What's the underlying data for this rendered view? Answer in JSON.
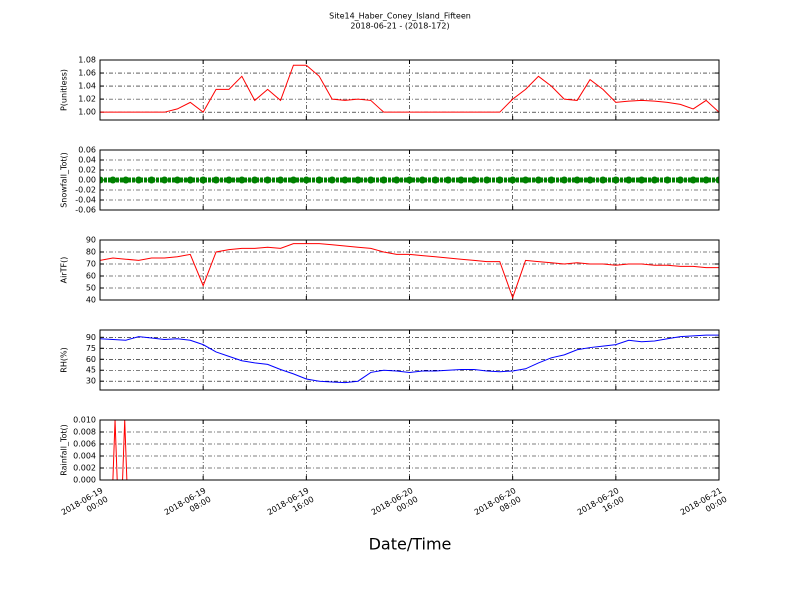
{
  "title": "Site14_Haber_Coney_Island_Fifteen",
  "subtitle": "2018-06-21 - (2018-172)",
  "xlabel": "Date/Time",
  "chart_data": [
    {
      "type": "line",
      "ylabel": "P(unitless)",
      "color": "#ff0000",
      "marker": "none",
      "linestyle": "solid",
      "x": [
        "2018-06-19 00:00",
        "2018-06-19 01:00",
        "2018-06-19 02:00",
        "2018-06-19 03:00",
        "2018-06-19 04:00",
        "2018-06-19 05:00",
        "2018-06-19 06:00",
        "2018-06-19 07:00",
        "2018-06-19 08:00",
        "2018-06-19 09:00",
        "2018-06-19 10:00",
        "2018-06-19 11:00",
        "2018-06-19 12:00",
        "2018-06-19 13:00",
        "2018-06-19 14:00",
        "2018-06-19 15:00",
        "2018-06-19 16:00",
        "2018-06-19 17:00",
        "2018-06-19 18:00",
        "2018-06-19 19:00",
        "2018-06-19 20:00",
        "2018-06-19 21:00",
        "2018-06-19 22:00",
        "2018-06-19 23:00",
        "2018-06-20 00:00",
        "2018-06-20 01:00",
        "2018-06-20 02:00",
        "2018-06-20 03:00",
        "2018-06-20 04:00",
        "2018-06-20 05:00",
        "2018-06-20 06:00",
        "2018-06-20 07:00",
        "2018-06-20 08:00",
        "2018-06-20 09:00",
        "2018-06-20 10:00",
        "2018-06-20 11:00",
        "2018-06-20 12:00",
        "2018-06-20 13:00",
        "2018-06-20 14:00",
        "2018-06-20 15:00",
        "2018-06-20 16:00",
        "2018-06-20 17:00",
        "2018-06-20 18:00",
        "2018-06-20 19:00",
        "2018-06-20 20:00",
        "2018-06-20 21:00",
        "2018-06-20 22:00",
        "2018-06-20 23:00",
        "2018-06-21 00:00"
      ],
      "values": [
        1.0,
        1.0,
        1.0,
        1.0,
        1.0,
        1.0,
        1.005,
        1.015,
        1.0,
        1.035,
        1.035,
        1.055,
        1.018,
        1.035,
        1.018,
        1.072,
        1.072,
        1.055,
        1.02,
        1.018,
        1.02,
        1.018,
        1.0,
        1.0,
        1.0,
        1.0,
        1.0,
        1.0,
        1.0,
        1.0,
        1.0,
        1.0,
        1.02,
        1.035,
        1.055,
        1.04,
        1.02,
        1.018,
        1.05,
        1.035,
        1.015,
        1.017,
        1.018,
        1.017,
        1.015,
        1.012,
        1.005,
        1.018,
        1.0
      ],
      "ylim": [
        0.988,
        1.08
      ],
      "yticks": [
        {
          "value": 1.0,
          "label": "1.00"
        },
        {
          "value": 1.02,
          "label": "1.02"
        },
        {
          "value": 1.04,
          "label": "1.04"
        },
        {
          "value": 1.06,
          "label": "1.06"
        },
        {
          "value": 1.08,
          "label": "1.08"
        }
      ],
      "xlim": [
        "2018-06-19 00:00",
        "2018-06-21 00:00"
      ],
      "xticks": [
        "2018-06-19 00:00",
        "2018-06-19 08:00",
        "2018-06-19 16:00",
        "2018-06-20 00:00",
        "2018-06-20 08:00",
        "2018-06-20 16:00",
        "2018-06-21 00:00"
      ],
      "grid": true
    },
    {
      "type": "line",
      "ylabel": "Snowfall_Tot()",
      "color": "#008000",
      "marker": "o",
      "linestyle": "none",
      "x": [
        "2018-06-19 00:00",
        "2018-06-19 01:00",
        "2018-06-19 02:00",
        "2018-06-19 03:00",
        "2018-06-19 04:00",
        "2018-06-19 05:00",
        "2018-06-19 06:00",
        "2018-06-19 07:00",
        "2018-06-19 08:00",
        "2018-06-19 09:00",
        "2018-06-19 10:00",
        "2018-06-19 11:00",
        "2018-06-19 12:00",
        "2018-06-19 13:00",
        "2018-06-19 14:00",
        "2018-06-19 15:00",
        "2018-06-19 16:00",
        "2018-06-19 17:00",
        "2018-06-19 18:00",
        "2018-06-19 19:00",
        "2018-06-19 20:00",
        "2018-06-19 21:00",
        "2018-06-19 22:00",
        "2018-06-19 23:00",
        "2018-06-20 00:00",
        "2018-06-20 01:00",
        "2018-06-20 02:00",
        "2018-06-20 03:00",
        "2018-06-20 04:00",
        "2018-06-20 05:00",
        "2018-06-20 06:00",
        "2018-06-20 07:00",
        "2018-06-20 08:00",
        "2018-06-20 09:00",
        "2018-06-20 10:00",
        "2018-06-20 11:00",
        "2018-06-20 12:00",
        "2018-06-20 13:00",
        "2018-06-20 14:00",
        "2018-06-20 15:00",
        "2018-06-20 16:00",
        "2018-06-20 17:00",
        "2018-06-20 18:00",
        "2018-06-20 19:00",
        "2018-06-20 20:00",
        "2018-06-20 21:00",
        "2018-06-20 22:00",
        "2018-06-20 23:00",
        "2018-06-21 00:00"
      ],
      "values": [
        0,
        0,
        0,
        0,
        0,
        0,
        0,
        0,
        0,
        0,
        0,
        0,
        0,
        0,
        0,
        0,
        0,
        0,
        0,
        0,
        0,
        0,
        0,
        0,
        0,
        0,
        0,
        0,
        0,
        0,
        0,
        0,
        0,
        0,
        0,
        0,
        0,
        0,
        0,
        0,
        0,
        0,
        0,
        0,
        0,
        0,
        0,
        0,
        0
      ],
      "ylim": [
        -0.06,
        0.06
      ],
      "yticks": [
        {
          "value": -0.06,
          "label": "-0.06"
        },
        {
          "value": -0.04,
          "label": "-0.04"
        },
        {
          "value": -0.02,
          "label": "-0.02"
        },
        {
          "value": 0,
          "label": "0.00"
        },
        {
          "value": 0.02,
          "label": "0.02"
        },
        {
          "value": 0.04,
          "label": "0.04"
        },
        {
          "value": 0.06,
          "label": "0.06"
        }
      ],
      "xlim": [
        "2018-06-19 00:00",
        "2018-06-21 00:00"
      ],
      "xticks": [
        "2018-06-19 00:00",
        "2018-06-19 08:00",
        "2018-06-19 16:00",
        "2018-06-20 00:00",
        "2018-06-20 08:00",
        "2018-06-20 16:00",
        "2018-06-21 00:00"
      ],
      "grid": true
    },
    {
      "type": "line",
      "ylabel": "AirTF()",
      "color": "#ff0000",
      "marker": "none",
      "linestyle": "solid",
      "x": [
        "2018-06-19 00:00",
        "2018-06-19 01:00",
        "2018-06-19 02:00",
        "2018-06-19 03:00",
        "2018-06-19 04:00",
        "2018-06-19 05:00",
        "2018-06-19 06:00",
        "2018-06-19 07:00",
        "2018-06-19 08:00",
        "2018-06-19 09:00",
        "2018-06-19 10:00",
        "2018-06-19 11:00",
        "2018-06-19 12:00",
        "2018-06-19 13:00",
        "2018-06-19 14:00",
        "2018-06-19 15:00",
        "2018-06-19 16:00",
        "2018-06-19 17:00",
        "2018-06-19 18:00",
        "2018-06-19 19:00",
        "2018-06-19 20:00",
        "2018-06-19 21:00",
        "2018-06-19 22:00",
        "2018-06-19 23:00",
        "2018-06-20 00:00",
        "2018-06-20 01:00",
        "2018-06-20 02:00",
        "2018-06-20 03:00",
        "2018-06-20 04:00",
        "2018-06-20 05:00",
        "2018-06-20 06:00",
        "2018-06-20 07:00",
        "2018-06-20 08:00",
        "2018-06-20 09:00",
        "2018-06-20 10:00",
        "2018-06-20 11:00",
        "2018-06-20 12:00",
        "2018-06-20 13:00",
        "2018-06-20 14:00",
        "2018-06-20 15:00",
        "2018-06-20 16:00",
        "2018-06-20 17:00",
        "2018-06-20 18:00",
        "2018-06-20 19:00",
        "2018-06-20 20:00",
        "2018-06-20 21:00",
        "2018-06-20 22:00",
        "2018-06-20 23:00",
        "2018-06-21 00:00"
      ],
      "values": [
        73,
        75,
        74,
        73,
        75,
        75,
        76,
        78,
        52,
        80,
        82,
        83,
        83,
        84,
        83,
        87,
        87,
        87,
        86,
        85,
        84,
        83,
        80,
        78,
        78,
        77,
        76,
        75,
        74,
        73,
        72,
        72,
        42,
        73,
        72,
        71,
        70,
        71,
        70,
        70,
        69,
        70,
        70,
        69,
        69,
        68,
        68,
        67,
        67
      ],
      "ylim": [
        40,
        90
      ],
      "yticks": [
        40,
        50,
        60,
        70,
        80,
        90
      ],
      "xlim": [
        "2018-06-19 00:00",
        "2018-06-21 00:00"
      ],
      "xticks": [
        "2018-06-19 00:00",
        "2018-06-19 08:00",
        "2018-06-19 16:00",
        "2018-06-20 00:00",
        "2018-06-20 08:00",
        "2018-06-20 16:00",
        "2018-06-21 00:00"
      ],
      "grid": true
    },
    {
      "type": "line",
      "ylabel": "RH(%)",
      "color": "#0000ff",
      "marker": "none",
      "linestyle": "solid",
      "x": [
        "2018-06-19 00:00",
        "2018-06-19 01:00",
        "2018-06-19 02:00",
        "2018-06-19 03:00",
        "2018-06-19 04:00",
        "2018-06-19 05:00",
        "2018-06-19 06:00",
        "2018-06-19 07:00",
        "2018-06-19 08:00",
        "2018-06-19 09:00",
        "2018-06-19 10:00",
        "2018-06-19 11:00",
        "2018-06-19 12:00",
        "2018-06-19 13:00",
        "2018-06-19 14:00",
        "2018-06-19 15:00",
        "2018-06-19 16:00",
        "2018-06-19 17:00",
        "2018-06-19 18:00",
        "2018-06-19 19:00",
        "2018-06-19 20:00",
        "2018-06-19 21:00",
        "2018-06-19 22:00",
        "2018-06-19 23:00",
        "2018-06-20 00:00",
        "2018-06-20 01:00",
        "2018-06-20 02:00",
        "2018-06-20 03:00",
        "2018-06-20 04:00",
        "2018-06-20 05:00",
        "2018-06-20 06:00",
        "2018-06-20 07:00",
        "2018-06-20 08:00",
        "2018-06-20 09:00",
        "2018-06-20 10:00",
        "2018-06-20 11:00",
        "2018-06-20 12:00",
        "2018-06-20 13:00",
        "2018-06-20 14:00",
        "2018-06-20 15:00",
        "2018-06-20 16:00",
        "2018-06-20 17:00",
        "2018-06-20 18:00",
        "2018-06-20 19:00",
        "2018-06-20 20:00",
        "2018-06-20 21:00",
        "2018-06-20 22:00",
        "2018-06-20 23:00",
        "2018-06-21 00:00"
      ],
      "values": [
        88,
        87,
        86,
        91,
        89,
        87,
        88,
        86,
        80,
        70,
        64,
        58,
        55,
        53,
        46,
        40,
        33,
        30,
        29,
        28,
        30,
        42,
        45,
        44,
        42,
        44,
        44,
        45,
        46,
        46,
        44,
        43,
        44,
        47,
        55,
        62,
        66,
        73,
        76,
        78,
        80,
        86,
        84,
        85,
        88,
        91,
        92,
        93,
        93
      ],
      "ylim": [
        18,
        100
      ],
      "yticks": [
        30,
        45,
        60,
        75,
        90
      ],
      "xlim": [
        "2018-06-19 00:00",
        "2018-06-21 00:00"
      ],
      "xticks": [
        "2018-06-19 00:00",
        "2018-06-19 08:00",
        "2018-06-19 16:00",
        "2018-06-20 00:00",
        "2018-06-20 08:00",
        "2018-06-20 16:00",
        "2018-06-21 00:00"
      ],
      "grid": true
    },
    {
      "type": "line",
      "ylabel": "Rainfall_Tot()",
      "color": "#ff0000",
      "marker": "none",
      "linestyle": "solid",
      "x": [
        "2018-06-19 00:00",
        "2018-06-19 01:00",
        "2018-06-19 01:10",
        "2018-06-19 01:20",
        "2018-06-19 01:45",
        "2018-06-19 01:55",
        "2018-06-19 02:05",
        "2018-06-21 00:00"
      ],
      "values": [
        0,
        0,
        0.01,
        0,
        0,
        0.01,
        0,
        0
      ],
      "ylim": [
        0,
        0.01
      ],
      "yticks": [
        {
          "value": 0,
          "label": "0.000"
        },
        {
          "value": 0.002,
          "label": "0.002"
        },
        {
          "value": 0.004,
          "label": "0.004"
        },
        {
          "value": 0.006,
          "label": "0.006"
        },
        {
          "value": 0.008,
          "label": "0.008"
        },
        {
          "value": 0.01,
          "label": "0.010"
        }
      ],
      "xlim": [
        "2018-06-19 00:00",
        "2018-06-21 00:00"
      ],
      "xticks": [
        {
          "value": "2018-06-19 00:00",
          "label": "2018-06-19 00:00"
        },
        {
          "value": "2018-06-19 08:00",
          "label": "2018-06-19 08:00"
        },
        {
          "value": "2018-06-19 16:00",
          "label": "2018-06-19 16:00"
        },
        {
          "value": "2018-06-20 00:00",
          "label": "2018-06-20 00:00"
        },
        {
          "value": "2018-06-20 08:00",
          "label": "2018-06-20 08:00"
        },
        {
          "value": "2018-06-20 16:00",
          "label": "2018-06-20 16:00"
        },
        {
          "value": "2018-06-21 00:00",
          "label": "2018-06-21 00:00"
        }
      ],
      "grid": true
    }
  ]
}
